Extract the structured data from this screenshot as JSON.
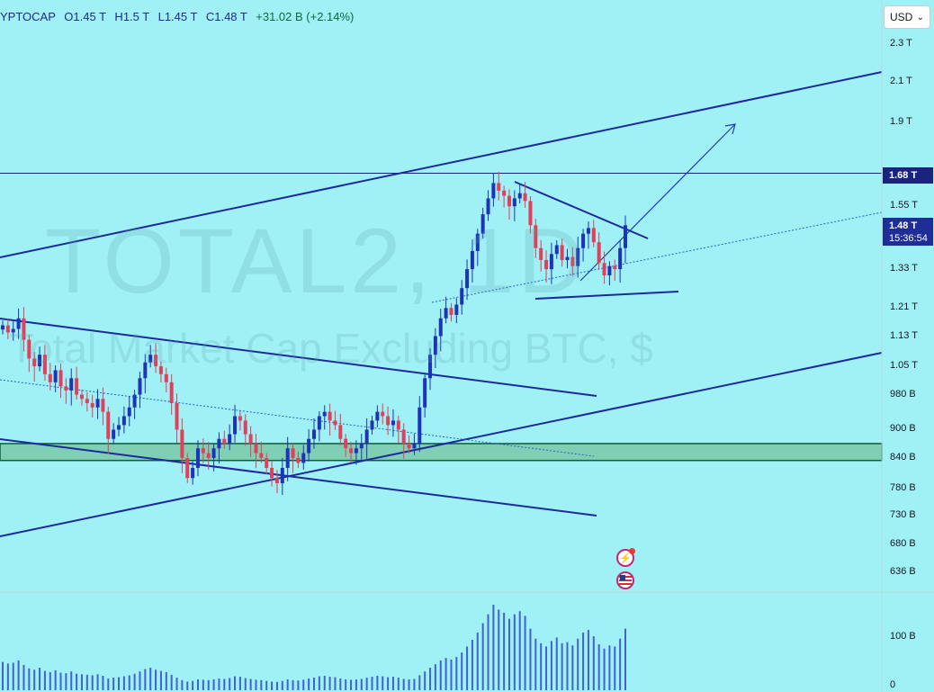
{
  "legend": {
    "symbol": "YPTOCAP",
    "open_label": "O",
    "open": "1.45 T",
    "high_label": "H",
    "high": "1.5 T",
    "low_label": "L",
    "low": "1.45 T",
    "close_label": "C",
    "close": "1.48 T",
    "change": "+31.02 B (+2.14%)"
  },
  "currency": {
    "label": "USD"
  },
  "watermark": {
    "title": "TOTAL2, 1D",
    "subtitle": "Total Market Cap Excluding BTC, $"
  },
  "price_tags": {
    "level": "1.68 T",
    "last": "1.48 T",
    "countdown": "15:36:54"
  },
  "colors": {
    "background": "#9ff1f6",
    "up": "#1e34b8",
    "down": "#e0405a",
    "trendline": "#1e2a9a",
    "zone": "#7fcfb4"
  },
  "icons": [
    "lightning-icon",
    "us-flag-icon"
  ],
  "chart_data": [
    {
      "type": "candlestick",
      "title": "",
      "price_axis_ticks": [
        "2.3 T",
        "2.1 T",
        "1.9 T",
        "1.68 T",
        "1.55 T",
        "1.48 T",
        "1.33 T",
        "1.21 T",
        "1.13 T",
        "1.05 T",
        "980 B",
        "900 B",
        "840 B",
        "780 B",
        "730 B",
        "680 B",
        "636 B"
      ],
      "scale": "log",
      "horizontal_level": 1.68,
      "support_zone": [
        0.835,
        0.87
      ],
      "closes": [
        1.16,
        1.14,
        1.15,
        1.18,
        1.12,
        1.07,
        1.05,
        1.08,
        1.03,
        1.01,
        1.04,
        1.0,
        0.99,
        1.02,
        0.98,
        0.97,
        0.96,
        0.95,
        0.97,
        0.94,
        0.88,
        0.9,
        0.91,
        0.93,
        0.95,
        0.98,
        1.02,
        1.06,
        1.08,
        1.05,
        1.03,
        1.01,
        0.96,
        0.9,
        0.84,
        0.8,
        0.82,
        0.86,
        0.85,
        0.84,
        0.86,
        0.88,
        0.87,
        0.89,
        0.93,
        0.92,
        0.89,
        0.87,
        0.85,
        0.84,
        0.82,
        0.8,
        0.79,
        0.82,
        0.86,
        0.84,
        0.83,
        0.85,
        0.88,
        0.9,
        0.93,
        0.94,
        0.92,
        0.91,
        0.88,
        0.86,
        0.85,
        0.86,
        0.87,
        0.9,
        0.92,
        0.94,
        0.93,
        0.91,
        0.92,
        0.9,
        0.87,
        0.86,
        0.87,
        0.95,
        1.02,
        1.08,
        1.13,
        1.18,
        1.21,
        1.19,
        1.22,
        1.27,
        1.33,
        1.39,
        1.45,
        1.52,
        1.58,
        1.64,
        1.61,
        1.59,
        1.55,
        1.58,
        1.6,
        1.57,
        1.48,
        1.4,
        1.36,
        1.33,
        1.38,
        1.41,
        1.36,
        1.37,
        1.34,
        1.4,
        1.45,
        1.47,
        1.42,
        1.35,
        1.31,
        1.34,
        1.33,
        1.4,
        1.48
      ],
      "volume_axis_ticks": [
        "100 B",
        "0"
      ]
    }
  ]
}
